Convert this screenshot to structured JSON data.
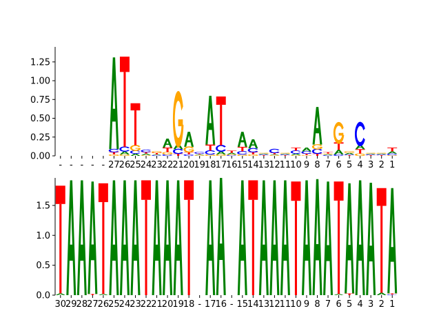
{
  "colors": {
    "A": "#008000",
    "C": "#0000ff",
    "G": "#ffa500",
    "T": "#ff0000"
  },
  "chart_data": [
    {
      "type": "sequence-logo",
      "panel": "top",
      "ylim": [
        0,
        1.45
      ],
      "yticks": [
        "0.00",
        "0.25",
        "0.50",
        "0.75",
        "1.00",
        "1.25"
      ],
      "ytick_values": [
        0,
        0.25,
        0.5,
        0.75,
        1.0,
        1.25
      ],
      "xtick_labels": [
        "-",
        "-",
        "-",
        "-",
        "-",
        "27",
        "26",
        "25",
        "24",
        "23",
        "22",
        "21",
        "20",
        "19",
        "18",
        "17",
        "16",
        "15",
        "14",
        "13",
        "12",
        "11",
        "10",
        "9",
        "8",
        "7",
        "6",
        "5",
        "4",
        "3",
        "2",
        "1"
      ],
      "columns": [
        [],
        [],
        [],
        [],
        [],
        [
          {
            "b": "A",
            "h": 1.22
          },
          {
            "b": "C",
            "h": 0.04
          },
          {
            "b": "T",
            "h": 0.03
          },
          {
            "b": "G",
            "h": 0.02
          }
        ],
        [
          {
            "b": "T",
            "h": 1.2
          },
          {
            "b": "C",
            "h": 0.06
          },
          {
            "b": "A",
            "h": 0.04
          },
          {
            "b": "G",
            "h": 0.02
          }
        ],
        [
          {
            "b": "T",
            "h": 0.56
          },
          {
            "b": "G",
            "h": 0.07
          },
          {
            "b": "C",
            "h": 0.04
          },
          {
            "b": "A",
            "h": 0.03
          }
        ],
        [
          {
            "b": "C",
            "h": 0.03
          },
          {
            "b": "A",
            "h": 0.02
          },
          {
            "b": "T",
            "h": 0.02
          },
          {
            "b": "G",
            "h": 0.01
          }
        ],
        [
          {
            "b": "T",
            "h": 0.02
          },
          {
            "b": "G",
            "h": 0.02
          },
          {
            "b": "C",
            "h": 0.01
          },
          {
            "b": "A",
            "h": 0.01
          }
        ],
        [
          {
            "b": "A",
            "h": 0.12
          },
          {
            "b": "T",
            "h": 0.06
          },
          {
            "b": "G",
            "h": 0.03
          },
          {
            "b": "C",
            "h": 0.02
          }
        ],
        [
          {
            "b": "G",
            "h": 0.65
          },
          {
            "b": "A",
            "h": 0.07
          },
          {
            "b": "C",
            "h": 0.06
          },
          {
            "b": "T",
            "h": 0.03
          }
        ],
        [
          {
            "b": "A",
            "h": 0.2
          },
          {
            "b": "G",
            "h": 0.07
          },
          {
            "b": "T",
            "h": 0.03
          },
          {
            "b": "C",
            "h": 0.02
          }
        ],
        [
          {
            "b": "C",
            "h": 0.02
          },
          {
            "b": "G",
            "h": 0.01
          },
          {
            "b": "A",
            "h": 0.01
          },
          {
            "b": "T",
            "h": 0.01
          }
        ],
        [
          {
            "b": "A",
            "h": 0.65
          },
          {
            "b": "T",
            "h": 0.08
          },
          {
            "b": "C",
            "h": 0.05
          },
          {
            "b": "G",
            "h": 0.02
          }
        ],
        [
          {
            "b": "T",
            "h": 0.65
          },
          {
            "b": "C",
            "h": 0.08
          },
          {
            "b": "A",
            "h": 0.04
          },
          {
            "b": "G",
            "h": 0.02
          }
        ],
        [
          {
            "b": "T",
            "h": 0.03
          },
          {
            "b": "A",
            "h": 0.02
          },
          {
            "b": "C",
            "h": 0.01
          },
          {
            "b": "G",
            "h": 0.01
          }
        ],
        [
          {
            "b": "A",
            "h": 0.2
          },
          {
            "b": "T",
            "h": 0.06
          },
          {
            "b": "C",
            "h": 0.04
          },
          {
            "b": "G",
            "h": 0.02
          }
        ],
        [
          {
            "b": "A",
            "h": 0.12
          },
          {
            "b": "C",
            "h": 0.05
          },
          {
            "b": "T",
            "h": 0.03
          },
          {
            "b": "G",
            "h": 0.02
          }
        ],
        [
          {
            "b": "T",
            "h": 0.01
          },
          {
            "b": "C",
            "h": 0.01
          },
          {
            "b": "A",
            "h": 0.01
          },
          {
            "b": "G",
            "h": 0.01
          }
        ],
        [
          {
            "b": "C",
            "h": 0.05
          },
          {
            "b": "T",
            "h": 0.02
          },
          {
            "b": "G",
            "h": 0.01
          },
          {
            "b": "A",
            "h": 0.01
          }
        ],
        [
          {
            "b": "T",
            "h": 0.01
          },
          {
            "b": "C",
            "h": 0.01
          },
          {
            "b": "A",
            "h": 0.01
          },
          {
            "b": "G",
            "h": 0.01
          }
        ],
        [
          {
            "b": "C",
            "h": 0.04
          },
          {
            "b": "T",
            "h": 0.04
          },
          {
            "b": "A",
            "h": 0.02
          },
          {
            "b": "G",
            "h": 0.01
          }
        ],
        [
          {
            "b": "A",
            "h": 0.05
          },
          {
            "b": "C",
            "h": 0.03
          },
          {
            "b": "T",
            "h": 0.02
          },
          {
            "b": "G",
            "h": 0.01
          }
        ],
        [
          {
            "b": "A",
            "h": 0.5
          },
          {
            "b": "C",
            "h": 0.06
          },
          {
            "b": "G",
            "h": 0.06
          },
          {
            "b": "T",
            "h": 0.03
          }
        ],
        [
          {
            "b": "T",
            "h": 0.02
          },
          {
            "b": "C",
            "h": 0.01
          },
          {
            "b": "A",
            "h": 0.01
          },
          {
            "b": "G",
            "h": 0.01
          }
        ],
        [
          {
            "b": "G",
            "h": 0.25
          },
          {
            "b": "T",
            "h": 0.1
          },
          {
            "b": "A",
            "h": 0.06
          },
          {
            "b": "C",
            "h": 0.02
          }
        ],
        [
          {
            "b": "A",
            "h": 0.02
          },
          {
            "b": "G",
            "h": 0.02
          },
          {
            "b": "T",
            "h": 0.01
          },
          {
            "b": "C",
            "h": 0.01
          }
        ],
        [
          {
            "b": "C",
            "h": 0.28
          },
          {
            "b": "T",
            "h": 0.06
          },
          {
            "b": "A",
            "h": 0.06
          },
          {
            "b": "G",
            "h": 0.03
          }
        ],
        [
          {
            "b": "T",
            "h": 0.01
          },
          {
            "b": "C",
            "h": 0.01
          },
          {
            "b": "A",
            "h": 0.01
          },
          {
            "b": "G",
            "h": 0.01
          }
        ],
        [
          {
            "b": "T",
            "h": 0.01
          },
          {
            "b": "C",
            "h": 0.01
          },
          {
            "b": "A",
            "h": 0.01
          },
          {
            "b": "G",
            "h": 0.01
          }
        ],
        [
          {
            "b": "T",
            "h": 0.05
          },
          {
            "b": "A",
            "h": 0.03
          },
          {
            "b": "C",
            "h": 0.02
          },
          {
            "b": "G",
            "h": 0.01
          }
        ]
      ]
    },
    {
      "type": "sequence-logo",
      "panel": "bottom",
      "ylim": [
        0,
        1.96
      ],
      "yticks": [
        "0.0",
        "0.5",
        "1.0",
        "1.5"
      ],
      "ytick_values": [
        0,
        0.5,
        1.0,
        1.5
      ],
      "xtick_labels": [
        "30",
        "29",
        "28",
        "27",
        "26",
        "25",
        "24",
        "23",
        "22",
        "21",
        "20",
        "19",
        "18",
        "-",
        "17",
        "16",
        "-",
        "15",
        "14",
        "13",
        "12",
        "11",
        "10",
        "9",
        "8",
        "7",
        "6",
        "5",
        "4",
        "3",
        "2",
        "1"
      ],
      "columns": [
        [
          {
            "b": "T",
            "h": 1.8
          },
          {
            "b": "A",
            "h": 0.03
          }
        ],
        [
          {
            "b": "A",
            "h": 1.92
          }
        ],
        [
          {
            "b": "A",
            "h": 1.92
          }
        ],
        [
          {
            "b": "A",
            "h": 1.88
          },
          {
            "b": "T",
            "h": 0.02
          }
        ],
        [
          {
            "b": "T",
            "h": 1.85
          },
          {
            "b": "A",
            "h": 0.02
          }
        ],
        [
          {
            "b": "A",
            "h": 1.92
          }
        ],
        [
          {
            "b": "A",
            "h": 1.92
          }
        ],
        [
          {
            "b": "A",
            "h": 1.92
          }
        ],
        [
          {
            "b": "T",
            "h": 1.92
          }
        ],
        [
          {
            "b": "A",
            "h": 1.92
          }
        ],
        [
          {
            "b": "A",
            "h": 1.92
          }
        ],
        [
          {
            "b": "A",
            "h": 1.92
          }
        ],
        [
          {
            "b": "T",
            "h": 1.92
          }
        ],
        [],
        [
          {
            "b": "A",
            "h": 1.92
          }
        ],
        [
          {
            "b": "A",
            "h": 1.96
          }
        ],
        [],
        [
          {
            "b": "A",
            "h": 1.92
          }
        ],
        [
          {
            "b": "T",
            "h": 1.92
          }
        ],
        [
          {
            "b": "A",
            "h": 1.92
          }
        ],
        [
          {
            "b": "A",
            "h": 1.92
          }
        ],
        [
          {
            "b": "A",
            "h": 1.92
          }
        ],
        [
          {
            "b": "T",
            "h": 1.9
          }
        ],
        [
          {
            "b": "A",
            "h": 1.92
          }
        ],
        [
          {
            "b": "A",
            "h": 1.94
          }
        ],
        [
          {
            "b": "A",
            "h": 1.9
          }
        ],
        [
          {
            "b": "T",
            "h": 1.88
          },
          {
            "b": "A",
            "h": 0.02
          }
        ],
        [
          {
            "b": "A",
            "h": 1.84
          },
          {
            "b": "T",
            "h": 0.03
          }
        ],
        [
          {
            "b": "A",
            "h": 1.92
          }
        ],
        [
          {
            "b": "A",
            "h": 1.88
          }
        ],
        [
          {
            "b": "T",
            "h": 1.75
          },
          {
            "b": "A",
            "h": 0.04
          }
        ],
        [
          {
            "b": "A",
            "h": 1.76
          },
          {
            "b": "T",
            "h": 0.02
          },
          {
            "b": "C",
            "h": 0.01
          }
        ]
      ]
    }
  ]
}
